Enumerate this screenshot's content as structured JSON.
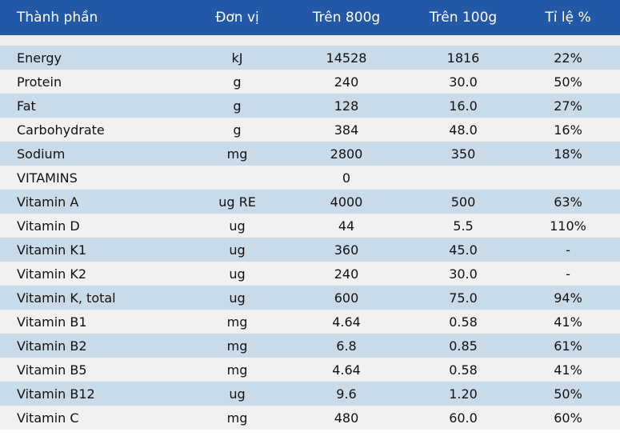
{
  "header": {
    "col0": "Thành phần",
    "col1": "Đơn vị",
    "col2": "Trên 800g",
    "col3": "Trên 100g",
    "col4": "Tỉ lệ %"
  },
  "rows": [
    {
      "name": "Energy",
      "unit": "kJ",
      "per800": "14528",
      "per100": "1816",
      "pct": "22%"
    },
    {
      "name": "Protein",
      "unit": "g",
      "per800": "240",
      "per100": "30.0",
      "pct": "50%"
    },
    {
      "name": "Fat",
      "unit": "g",
      "per800": "128",
      "per100": "16.0",
      "pct": "27%"
    },
    {
      "name": "Carbohydrate",
      "unit": "g",
      "per800": "384",
      "per100": "48.0",
      "pct": "16%"
    },
    {
      "name": "Sodium",
      "unit": "mg",
      "per800": "2800",
      "per100": "350",
      "pct": "18%"
    },
    {
      "name": "VITAMINS",
      "unit": "",
      "per800": "0",
      "per100": "",
      "pct": ""
    },
    {
      "name": "Vitamin A",
      "unit": "ug RE",
      "per800": "4000",
      "per100": "500",
      "pct": "63%"
    },
    {
      "name": "Vitamin D",
      "unit": "ug",
      "per800": "44",
      "per100": "5.5",
      "pct": "110%"
    },
    {
      "name": "Vitamin K1",
      "unit": "ug",
      "per800": "360",
      "per100": "45.0",
      "pct": "-"
    },
    {
      "name": "Vitamin K2",
      "unit": "ug",
      "per800": "240",
      "per100": "30.0",
      "pct": "-"
    },
    {
      "name": "Vitamin K, total",
      "unit": "ug",
      "per800": "600",
      "per100": "75.0",
      "pct": "94%"
    },
    {
      "name": "Vitamin B1",
      "unit": "mg",
      "per800": "4.64",
      "per100": "0.58",
      "pct": "41%"
    },
    {
      "name": "Vitamin B2",
      "unit": "mg",
      "per800": "6.8",
      "per100": "0.85",
      "pct": "61%"
    },
    {
      "name": "Vitamin B5",
      "unit": "mg",
      "per800": "4.64",
      "per100": "0.58",
      "pct": "41%"
    },
    {
      "name": "Vitamin B12",
      "unit": "ug",
      "per800": "9.6",
      "per100": "1.20",
      "pct": "50%"
    },
    {
      "name": "Vitamin C",
      "unit": "mg",
      "per800": "480",
      "per100": "60.0",
      "pct": "60%"
    }
  ],
  "colors": {
    "header_bg": "#2358a7",
    "row_shaded": "#c9dbe8",
    "row_plain": "#f1f1f1"
  }
}
